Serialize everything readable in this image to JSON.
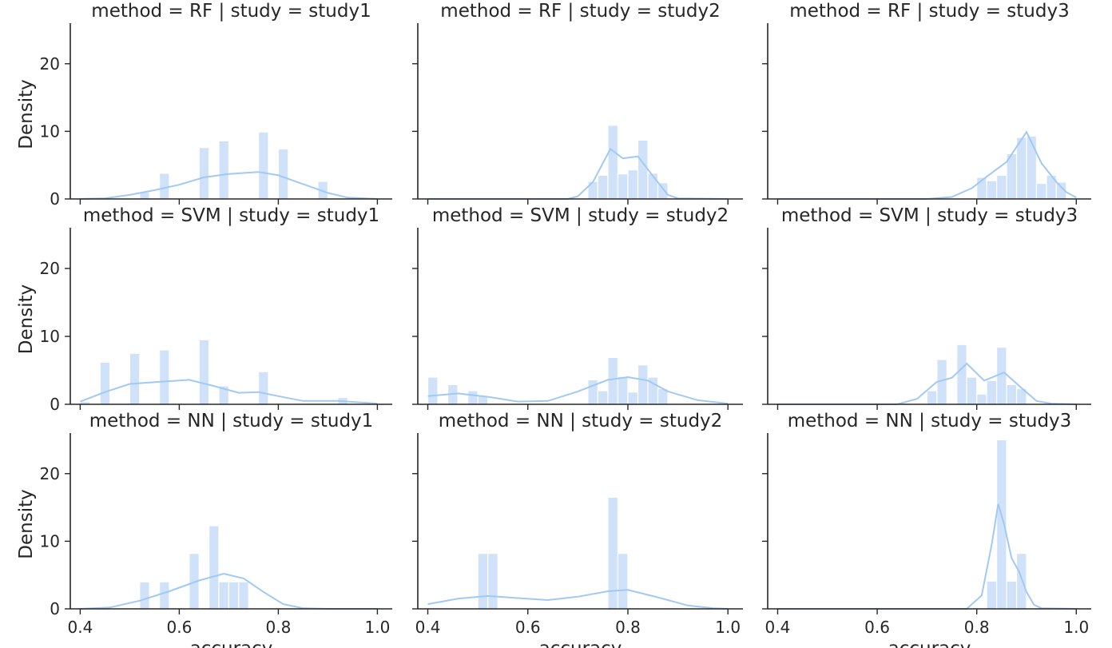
{
  "chart_data": {
    "type": "histogram-facet-grid",
    "xlabel": "accuracy",
    "ylabel": "Density",
    "xlim": [
      0.38,
      1.03
    ],
    "ylim": [
      0,
      26
    ],
    "xticks": [
      0.4,
      0.6,
      0.8,
      1.0
    ],
    "xtick_labels": [
      "0.4",
      "0.6",
      "0.8",
      "1.0"
    ],
    "yticks": [
      0,
      10,
      20
    ],
    "ytick_labels": [
      "0",
      "10",
      "20"
    ],
    "bin_width": 0.02,
    "bar_color": "#cfe2f9",
    "kde_color": "#a1c9f4",
    "grid": false,
    "row_variable": "method",
    "col_variable": "study",
    "rows": [
      "RF",
      "SVM",
      "NN"
    ],
    "cols": [
      "study1",
      "study2",
      "study3"
    ],
    "panels": [
      {
        "title": "method = RF | study = study1",
        "bars": [
          [
            0.52,
            1.0
          ],
          [
            0.56,
            3.8
          ],
          [
            0.64,
            7.6
          ],
          [
            0.68,
            8.6
          ],
          [
            0.76,
            9.9
          ],
          [
            0.8,
            7.4
          ],
          [
            0.88,
            2.6
          ]
        ],
        "kde": [
          [
            0.4,
            0.0
          ],
          [
            0.45,
            0.1
          ],
          [
            0.5,
            0.6
          ],
          [
            0.55,
            1.3
          ],
          [
            0.6,
            2.1
          ],
          [
            0.65,
            3.2
          ],
          [
            0.7,
            3.7
          ],
          [
            0.76,
            4.0
          ],
          [
            0.8,
            3.5
          ],
          [
            0.85,
            2.2
          ],
          [
            0.9,
            0.9
          ],
          [
            0.94,
            0.2
          ],
          [
            1.0,
            0.0
          ]
        ]
      },
      {
        "title": "method = RF | study = study2",
        "bars": [
          [
            0.72,
            2.6
          ],
          [
            0.74,
            3.5
          ],
          [
            0.76,
            10.9
          ],
          [
            0.78,
            3.7
          ],
          [
            0.8,
            4.3
          ],
          [
            0.82,
            8.7
          ],
          [
            0.84,
            3.8
          ],
          [
            0.86,
            2.4
          ]
        ],
        "kde": [
          [
            0.4,
            0.0
          ],
          [
            0.68,
            0.0
          ],
          [
            0.7,
            0.4
          ],
          [
            0.73,
            2.5
          ],
          [
            0.765,
            7.4
          ],
          [
            0.79,
            6.0
          ],
          [
            0.82,
            6.3
          ],
          [
            0.85,
            3.4
          ],
          [
            0.88,
            0.6
          ],
          [
            0.9,
            0.1
          ],
          [
            1.0,
            0.0
          ]
        ]
      },
      {
        "title": "method = RF | study = study3",
        "bars": [
          [
            0.8,
            3.2
          ],
          [
            0.82,
            2.7
          ],
          [
            0.84,
            3.5
          ],
          [
            0.86,
            6.7
          ],
          [
            0.88,
            9.1
          ],
          [
            0.9,
            9.3
          ],
          [
            0.92,
            2.3
          ],
          [
            0.94,
            3.5
          ],
          [
            0.96,
            2.5
          ]
        ],
        "kde": [
          [
            0.4,
            0.0
          ],
          [
            0.7,
            0.0
          ],
          [
            0.75,
            0.3
          ],
          [
            0.79,
            1.6
          ],
          [
            0.82,
            3.3
          ],
          [
            0.86,
            5.5
          ],
          [
            0.9,
            9.9
          ],
          [
            0.93,
            5.3
          ],
          [
            0.96,
            2.5
          ],
          [
            0.98,
            1.0
          ],
          [
            1.0,
            0.2
          ]
        ]
      },
      {
        "title": "method = SVM | study = study1",
        "bars": [
          [
            0.4,
            0.4
          ],
          [
            0.44,
            6.2
          ],
          [
            0.5,
            7.5
          ],
          [
            0.56,
            8.0
          ],
          [
            0.64,
            9.5
          ],
          [
            0.68,
            2.7
          ],
          [
            0.76,
            4.8
          ],
          [
            0.92,
            1.0
          ]
        ],
        "kde": [
          [
            0.4,
            0.4
          ],
          [
            0.45,
            1.8
          ],
          [
            0.5,
            3.0
          ],
          [
            0.56,
            3.3
          ],
          [
            0.62,
            3.6
          ],
          [
            0.67,
            2.7
          ],
          [
            0.72,
            1.7
          ],
          [
            0.76,
            1.8
          ],
          [
            0.8,
            1.2
          ],
          [
            0.85,
            0.5
          ],
          [
            0.92,
            0.5
          ],
          [
            0.98,
            0.2
          ],
          [
            1.0,
            0.1
          ]
        ]
      },
      {
        "title": "method = SVM | study = study2",
        "bars": [
          [
            0.4,
            4.0
          ],
          [
            0.44,
            2.9
          ],
          [
            0.48,
            2.0
          ],
          [
            0.5,
            1.3
          ],
          [
            0.72,
            3.6
          ],
          [
            0.74,
            2.0
          ],
          [
            0.76,
            6.9
          ],
          [
            0.78,
            4.1
          ],
          [
            0.8,
            1.8
          ],
          [
            0.82,
            5.8
          ],
          [
            0.84,
            4.0
          ],
          [
            0.86,
            2.3
          ]
        ],
        "kde": [
          [
            0.4,
            1.2
          ],
          [
            0.46,
            1.6
          ],
          [
            0.52,
            1.1
          ],
          [
            0.58,
            0.4
          ],
          [
            0.64,
            0.5
          ],
          [
            0.7,
            1.9
          ],
          [
            0.76,
            3.6
          ],
          [
            0.8,
            4.0
          ],
          [
            0.84,
            3.5
          ],
          [
            0.88,
            1.9
          ],
          [
            0.94,
            0.6
          ],
          [
            1.0,
            0.1
          ]
        ]
      },
      {
        "title": "method = SVM | study = study3",
        "bars": [
          [
            0.7,
            2.0
          ],
          [
            0.72,
            6.6
          ],
          [
            0.76,
            8.8
          ],
          [
            0.78,
            4.0
          ],
          [
            0.8,
            1.5
          ],
          [
            0.82,
            3.5
          ],
          [
            0.84,
            8.4
          ],
          [
            0.86,
            2.9
          ],
          [
            0.88,
            2.3
          ]
        ],
        "kde": [
          [
            0.4,
            0.0
          ],
          [
            0.64,
            0.0
          ],
          [
            0.68,
            0.8
          ],
          [
            0.72,
            3.3
          ],
          [
            0.75,
            3.9
          ],
          [
            0.78,
            6.0
          ],
          [
            0.815,
            3.5
          ],
          [
            0.855,
            4.7
          ],
          [
            0.89,
            2.4
          ],
          [
            0.92,
            0.5
          ],
          [
            0.95,
            0.1
          ],
          [
            1.0,
            0.0
          ]
        ]
      },
      {
        "title": "method = NN | study = study1",
        "bars": [
          [
            0.52,
            4.0
          ],
          [
            0.56,
            4.0
          ],
          [
            0.62,
            8.2
          ],
          [
            0.66,
            12.3
          ],
          [
            0.68,
            4.0
          ],
          [
            0.7,
            4.0
          ],
          [
            0.72,
            4.0
          ]
        ],
        "kde": [
          [
            0.4,
            0.0
          ],
          [
            0.46,
            0.2
          ],
          [
            0.52,
            1.2
          ],
          [
            0.58,
            2.6
          ],
          [
            0.64,
            4.2
          ],
          [
            0.69,
            5.2
          ],
          [
            0.73,
            4.5
          ],
          [
            0.77,
            2.5
          ],
          [
            0.81,
            0.7
          ],
          [
            0.85,
            0.1
          ],
          [
            0.9,
            0.0
          ],
          [
            1.0,
            0.0
          ]
        ]
      },
      {
        "title": "method = NN | study = study2",
        "bars": [
          [
            0.5,
            8.2
          ],
          [
            0.52,
            8.2
          ],
          [
            0.76,
            16.5
          ],
          [
            0.78,
            8.2
          ]
        ],
        "kde": [
          [
            0.4,
            0.7
          ],
          [
            0.46,
            1.5
          ],
          [
            0.52,
            1.9
          ],
          [
            0.58,
            1.6
          ],
          [
            0.64,
            1.3
          ],
          [
            0.7,
            1.8
          ],
          [
            0.76,
            2.6
          ],
          [
            0.8,
            2.8
          ],
          [
            0.86,
            1.7
          ],
          [
            0.92,
            0.5
          ],
          [
            0.97,
            0.1
          ],
          [
            1.0,
            0.0
          ]
        ]
      },
      {
        "title": "method = NN | study = study3",
        "bars": [
          [
            0.82,
            4.1
          ],
          [
            0.84,
            25.0
          ],
          [
            0.86,
            4.1
          ],
          [
            0.88,
            8.2
          ]
        ],
        "kde": [
          [
            0.4,
            0.0
          ],
          [
            0.78,
            0.0
          ],
          [
            0.81,
            2.0
          ],
          [
            0.83,
            9.5
          ],
          [
            0.843,
            15.5
          ],
          [
            0.855,
            12.5
          ],
          [
            0.87,
            7.5
          ],
          [
            0.885,
            5.5
          ],
          [
            0.9,
            2.5
          ],
          [
            0.915,
            0.6
          ],
          [
            0.93,
            0.1
          ],
          [
            1.0,
            0.0
          ]
        ]
      }
    ]
  }
}
